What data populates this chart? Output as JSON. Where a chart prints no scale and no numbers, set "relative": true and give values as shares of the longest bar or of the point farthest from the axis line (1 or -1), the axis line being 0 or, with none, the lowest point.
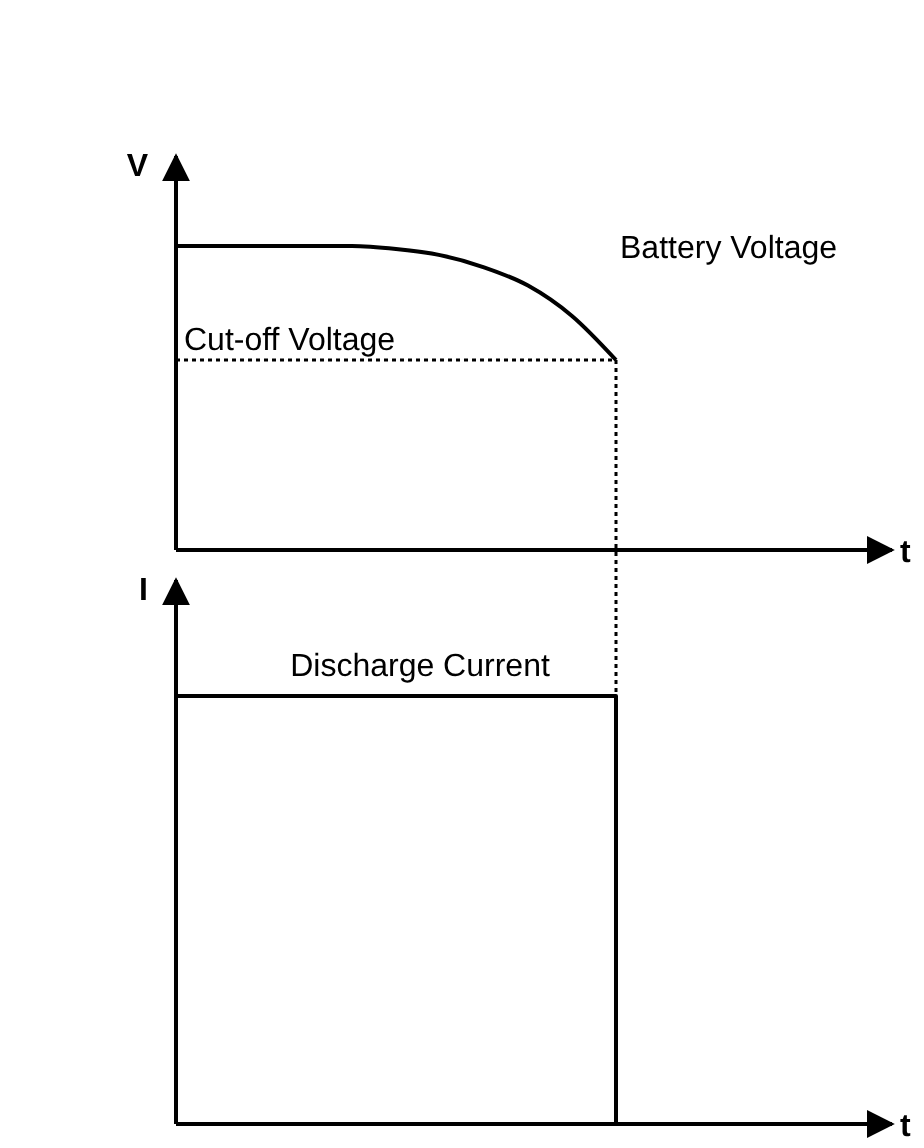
{
  "chart_data": [
    {
      "type": "line",
      "relative": true,
      "ylabel": "V",
      "xlabel": "t",
      "tick_labels": false,
      "legend": false,
      "marker": "none",
      "line_style": "solid",
      "categories": [
        null,
        null,
        null,
        null,
        null,
        null,
        null,
        null,
        null,
        null,
        null,
        null,
        null,
        null,
        null,
        null,
        null
      ],
      "series": [
        {
          "name": "Battery Voltage",
          "color": "#000000",
          "values": [
            1,
            1,
            1,
            1,
            1,
            0.99,
            0.97,
            0.93,
            0.87,
            0.77,
            0.625,
            null,
            null,
            null,
            null,
            null,
            null
          ]
        }
      ],
      "ref_lines": [
        {
          "axis": "y",
          "value": 0.625,
          "label": "Cut-off Voltage",
          "line_style": "dotted",
          "color": "#000000"
        }
      ]
    },
    {
      "type": "step",
      "relative": true,
      "ylabel": "I",
      "xlabel": "t",
      "tick_labels": false,
      "legend": false,
      "marker": "none",
      "line_style": "solid",
      "categories": [
        null,
        null,
        null,
        null,
        null,
        null,
        null,
        null,
        null,
        null,
        null,
        null,
        null,
        null,
        null,
        null,
        null
      ],
      "series": [
        {
          "name": "Discharge Current",
          "color": "#000000",
          "values": [
            1,
            1,
            1,
            1,
            1,
            1,
            1,
            1,
            1,
            1,
            0,
            null,
            null,
            null,
            null,
            null,
            null
          ]
        }
      ]
    }
  ]
}
